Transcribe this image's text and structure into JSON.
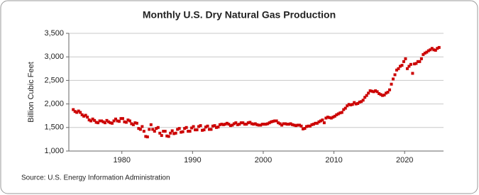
{
  "chart_data": {
    "type": "scatter",
    "title": "Monthly U.S. Dry Natural Gas Production",
    "y_label": "Billion Cubic Feet",
    "source": "Source: U.S. Energy Information Administration",
    "color": "#cc0000",
    "grid": true,
    "xlim": [
      1972.5,
      2025.5
    ],
    "xticks": [
      1980,
      1990,
      2000,
      2010,
      2020
    ],
    "ylim": [
      1000,
      3500
    ],
    "yticks": [
      {
        "value": 1000,
        "label": "1,000"
      },
      {
        "value": 1500,
        "label": "1,500"
      },
      {
        "value": 2000,
        "label": "2,000"
      },
      {
        "value": 2500,
        "label": "2,500"
      },
      {
        "value": 3000,
        "label": "3,000"
      },
      {
        "value": 3500,
        "label": "3,500"
      }
    ],
    "x": [
      1973.125,
      1973.375,
      1973.625,
      1973.875,
      1974.125,
      1974.375,
      1974.625,
      1974.875,
      1975.125,
      1975.375,
      1975.625,
      1975.875,
      1976.125,
      1976.375,
      1976.625,
      1976.875,
      1977.125,
      1977.375,
      1977.625,
      1977.875,
      1978.125,
      1978.375,
      1978.625,
      1978.875,
      1979.125,
      1979.375,
      1979.625,
      1979.875,
      1980.125,
      1980.375,
      1980.625,
      1980.875,
      1981.125,
      1981.375,
      1981.625,
      1981.875,
      1982.125,
      1982.375,
      1982.625,
      1982.875,
      1983.125,
      1983.375,
      1983.625,
      1983.875,
      1984.125,
      1984.375,
      1984.625,
      1984.875,
      1985.125,
      1985.375,
      1985.625,
      1985.875,
      1986.125,
      1986.375,
      1986.625,
      1986.875,
      1987.125,
      1987.375,
      1987.625,
      1987.875,
      1988.125,
      1988.375,
      1988.625,
      1988.875,
      1989.125,
      1989.375,
      1989.625,
      1989.875,
      1990.125,
      1990.375,
      1990.625,
      1990.875,
      1991.125,
      1991.375,
      1991.625,
      1991.875,
      1992.125,
      1992.375,
      1992.625,
      1992.875,
      1993.125,
      1993.375,
      1993.625,
      1993.875,
      1994.125,
      1994.375,
      1994.625,
      1994.875,
      1995.125,
      1995.375,
      1995.625,
      1995.875,
      1996.125,
      1996.375,
      1996.625,
      1996.875,
      1997.125,
      1997.375,
      1997.625,
      1997.875,
      1998.125,
      1998.375,
      1998.625,
      1998.875,
      1999.125,
      1999.375,
      1999.625,
      1999.875,
      2000.125,
      2000.375,
      2000.625,
      2000.875,
      2001.125,
      2001.375,
      2001.625,
      2001.875,
      2002.125,
      2002.375,
      2002.625,
      2002.875,
      2003.125,
      2003.375,
      2003.625,
      2003.875,
      2004.125,
      2004.375,
      2004.625,
      2004.875,
      2005.125,
      2005.375,
      2005.625,
      2005.875,
      2006.125,
      2006.375,
      2006.625,
      2006.875,
      2007.125,
      2007.375,
      2007.625,
      2007.875,
      2008.125,
      2008.375,
      2008.625,
      2008.875,
      2009.125,
      2009.375,
      2009.625,
      2009.875,
      2010.125,
      2010.375,
      2010.625,
      2010.875,
      2011.125,
      2011.375,
      2011.625,
      2011.875,
      2012.125,
      2012.375,
      2012.625,
      2012.875,
      2013.125,
      2013.375,
      2013.625,
      2013.875,
      2014.125,
      2014.375,
      2014.625,
      2014.875,
      2015.125,
      2015.375,
      2015.625,
      2015.875,
      2016.125,
      2016.375,
      2016.625,
      2016.875,
      2017.125,
      2017.375,
      2017.625,
      2017.875,
      2018.125,
      2018.375,
      2018.625,
      2018.875,
      2019.125,
      2019.375,
      2019.625,
      2019.875,
      2020.125,
      2020.375,
      2020.625,
      2020.875,
      2021.125,
      2021.375,
      2021.625,
      2021.875,
      2022.125,
      2022.375,
      2022.625,
      2022.875,
      2023.125,
      2023.375,
      2023.625,
      2023.875,
      2024.125,
      2024.375,
      2024.625,
      2024.875
    ],
    "values": [
      1880,
      1840,
      1820,
      1850,
      1820,
      1770,
      1740,
      1760,
      1720,
      1660,
      1640,
      1680,
      1650,
      1610,
      1600,
      1640,
      1640,
      1620,
      1600,
      1650,
      1620,
      1600,
      1590,
      1640,
      1680,
      1640,
      1630,
      1690,
      1690,
      1620,
      1610,
      1660,
      1640,
      1580,
      1560,
      1600,
      1590,
      1480,
      1460,
      1520,
      1420,
      1310,
      1300,
      1460,
      1560,
      1460,
      1420,
      1480,
      1500,
      1380,
      1330,
      1420,
      1420,
      1320,
      1310,
      1380,
      1430,
      1370,
      1380,
      1460,
      1480,
      1400,
      1410,
      1480,
      1500,
      1420,
      1420,
      1490,
      1520,
      1450,
      1450,
      1520,
      1540,
      1440,
      1450,
      1510,
      1530,
      1460,
      1460,
      1530,
      1540,
      1500,
      1510,
      1560,
      1570,
      1560,
      1570,
      1590,
      1570,
      1540,
      1550,
      1580,
      1600,
      1560,
      1570,
      1600,
      1600,
      1570,
      1570,
      1600,
      1610,
      1580,
      1570,
      1580,
      1560,
      1550,
      1550,
      1570,
      1570,
      1570,
      1580,
      1600,
      1620,
      1630,
      1640,
      1640,
      1600,
      1580,
      1550,
      1580,
      1580,
      1570,
      1570,
      1580,
      1560,
      1550,
      1540,
      1550,
      1550,
      1530,
      1470,
      1480,
      1520,
      1530,
      1530,
      1560,
      1570,
      1590,
      1590,
      1620,
      1640,
      1660,
      1600,
      1700,
      1720,
      1710,
      1700,
      1720,
      1740,
      1770,
      1790,
      1810,
      1820,
      1880,
      1910,
      1960,
      1990,
      1980,
      1990,
      2030,
      2000,
      2010,
      2040,
      2050,
      2080,
      2140,
      2180,
      2230,
      2280,
      2270,
      2260,
      2280,
      2260,
      2220,
      2200,
      2180,
      2190,
      2230,
      2250,
      2300,
      2420,
      2530,
      2620,
      2720,
      2750,
      2800,
      2820,
      2900,
      2960,
      2750,
      2800,
      2840,
      2650,
      2850,
      2860,
      2900,
      2900,
      2960,
      3050,
      3080,
      3100,
      3130,
      3150,
      3180,
      3150,
      3140,
      3180,
      3200
    ]
  }
}
